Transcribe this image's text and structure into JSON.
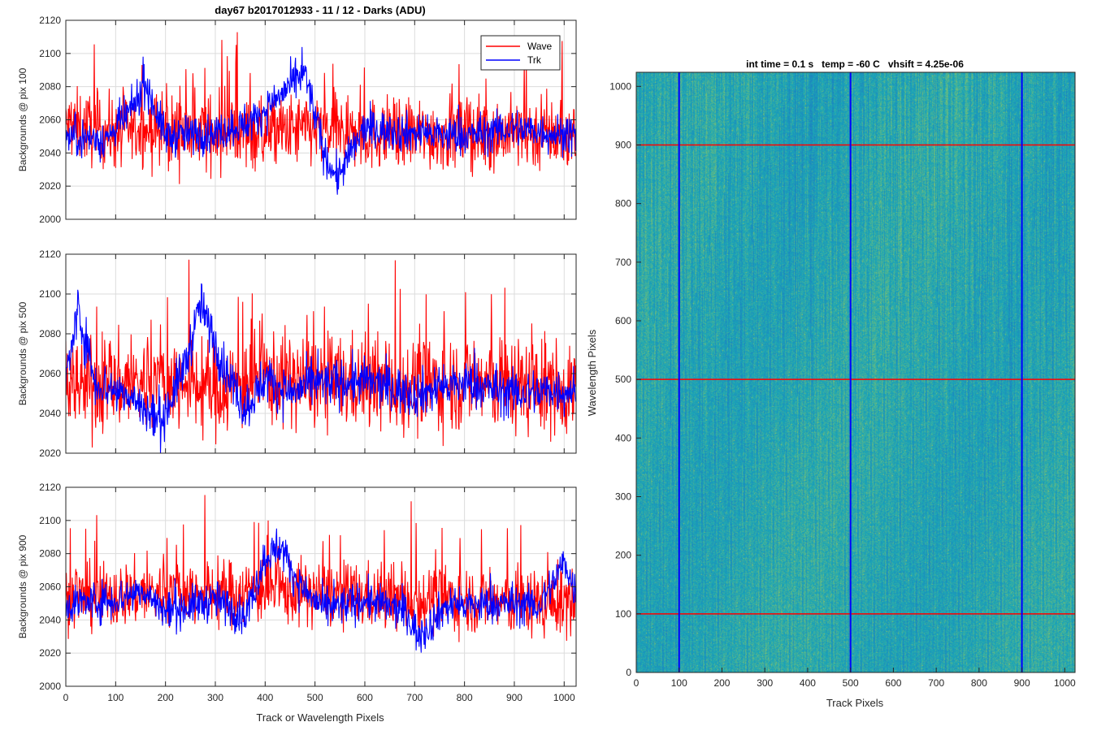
{
  "figure": {
    "title": "day67 b2017012933 - 11 / 12 - Darks (ADU)",
    "left_xlabel": "Track or Wavelength Pixels"
  },
  "legend": {
    "placement": "top-right",
    "entries": [
      {
        "name": "Wave",
        "color": "#ff0000"
      },
      {
        "name": "Trk",
        "color": "#0000ff"
      }
    ]
  },
  "chart_data": [
    {
      "type": "line",
      "ylabel": "Backgrounds @ pix 100",
      "xlim": [
        0,
        1024
      ],
      "ylim": [
        2000,
        2120
      ],
      "xticks": [
        0,
        100,
        200,
        300,
        400,
        500,
        600,
        700,
        800,
        900,
        1000
      ],
      "yticks": [
        2000,
        2020,
        2040,
        2060,
        2080,
        2100,
        2120
      ],
      "grid": true,
      "series": [
        {
          "name": "Wave",
          "color": "#ff0000",
          "baseline": 2052,
          "noise": 11,
          "spike_prob": 0.05,
          "spike_amp": 45,
          "x": [
            0,
            50,
            97,
            150,
            250,
            400,
            500,
            600,
            700,
            800,
            900,
            1024
          ],
          "y": [
            2056,
            2055,
            2052,
            2054,
            2053,
            2052,
            2054,
            2051,
            2052,
            2051,
            2052,
            2050
          ]
        },
        {
          "name": "Trk",
          "color": "#0000ff",
          "baseline": 2050,
          "noise": 6,
          "spike_prob": 0.01,
          "spike_amp": 10,
          "x": [
            0,
            80,
            130,
            160,
            200,
            300,
            380,
            420,
            480,
            520,
            545,
            600,
            700,
            800,
            900,
            1024
          ],
          "y": [
            2050,
            2048,
            2065,
            2082,
            2050,
            2052,
            2060,
            2072,
            2088,
            2038,
            2025,
            2055,
            2052,
            2050,
            2055,
            2050
          ]
        }
      ]
    },
    {
      "type": "line",
      "ylabel": "Backgrounds @ pix 500",
      "xlim": [
        0,
        1024
      ],
      "ylim": [
        2020,
        2120
      ],
      "xticks": [
        0,
        100,
        200,
        300,
        400,
        500,
        600,
        700,
        800,
        900,
        1000
      ],
      "yticks": [
        2020,
        2040,
        2060,
        2080,
        2100,
        2120
      ],
      "grid": true,
      "series": [
        {
          "name": "Wave",
          "color": "#ff0000",
          "baseline": 2054,
          "noise": 12,
          "spike_prob": 0.05,
          "spike_amp": 45,
          "x": [
            0,
            100,
            200,
            300,
            400,
            500,
            600,
            700,
            800,
            900,
            1024
          ],
          "y": [
            2054,
            2055,
            2056,
            2052,
            2058,
            2056,
            2055,
            2054,
            2056,
            2054,
            2052
          ]
        },
        {
          "name": "Trk",
          "color": "#0000ff",
          "baseline": 2052,
          "noise": 6,
          "spike_prob": 0.01,
          "spike_amp": 10,
          "x": [
            0,
            25,
            60,
            120,
            190,
            240,
            270,
            310,
            360,
            400,
            450,
            500,
            600,
            700,
            800,
            900,
            1024
          ],
          "y": [
            2058,
            2092,
            2055,
            2050,
            2035,
            2065,
            2095,
            2068,
            2042,
            2058,
            2050,
            2055,
            2056,
            2050,
            2055,
            2050,
            2052
          ]
        }
      ]
    },
    {
      "type": "line",
      "ylabel": "Backgrounds @ pix 900",
      "xlim": [
        0,
        1024
      ],
      "ylim": [
        2000,
        2120
      ],
      "xticks": [
        0,
        100,
        200,
        300,
        400,
        500,
        600,
        700,
        800,
        900,
        1000
      ],
      "yticks": [
        2000,
        2020,
        2040,
        2060,
        2080,
        2100,
        2120
      ],
      "grid": true,
      "series": [
        {
          "name": "Wave",
          "color": "#ff0000",
          "baseline": 2053,
          "noise": 10,
          "spike_prob": 0.05,
          "spike_amp": 45,
          "x": [
            0,
            100,
            200,
            300,
            400,
            500,
            600,
            700,
            800,
            900,
            1024
          ],
          "y": [
            2052,
            2055,
            2057,
            2056,
            2058,
            2056,
            2054,
            2052,
            2053,
            2050,
            2050
          ]
        },
        {
          "name": "Trk",
          "color": "#0000ff",
          "baseline": 2050,
          "noise": 6,
          "spike_prob": 0.01,
          "spike_amp": 10,
          "x": [
            0,
            100,
            150,
            200,
            300,
            360,
            400,
            430,
            470,
            520,
            600,
            680,
            710,
            760,
            900,
            950,
            1000,
            1024
          ],
          "y": [
            2050,
            2052,
            2058,
            2045,
            2052,
            2042,
            2078,
            2085,
            2060,
            2046,
            2052,
            2045,
            2030,
            2048,
            2050,
            2048,
            2075,
            2056
          ]
        }
      ]
    },
    {
      "type": "heatmap",
      "title": "int time = 0.1 s   temp = -60 C   vhsift = 4.25e-06",
      "xlabel": "Track Pixels",
      "ylabel": "Wavelength Pixels",
      "xlim": [
        0,
        1024
      ],
      "ylim": [
        0,
        1024
      ],
      "xticks": [
        0,
        100,
        200,
        300,
        400,
        500,
        600,
        700,
        800,
        900,
        1000
      ],
      "yticks": [
        0,
        100,
        200,
        300,
        400,
        500,
        600,
        700,
        800,
        900,
        1000
      ],
      "colormap": {
        "low": "#1e73c4",
        "mid": "#1aa6b7",
        "high": "#9cc85a"
      },
      "vertical_lines": [
        {
          "x": 100,
          "color": "#0000ff"
        },
        {
          "x": 500,
          "color": "#0000ff"
        },
        {
          "x": 900,
          "color": "#0000ff"
        }
      ],
      "horizontal_lines": [
        {
          "y": 100,
          "color": "#ff0000"
        },
        {
          "y": 500,
          "color": "#ff0000"
        },
        {
          "y": 900,
          "color": "#ff0000"
        }
      ]
    }
  ]
}
